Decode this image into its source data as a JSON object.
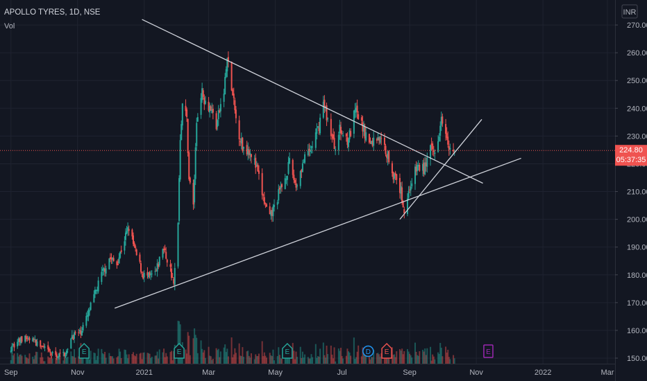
{
  "header": {
    "title": "APOLLO TYRES, 1D, NSE",
    "volume_label": "Vol",
    "currency_button": "INR"
  },
  "chart_data": {
    "type": "candlestick",
    "title": "APOLLO TYRES, 1D, NSE",
    "y_ticks": [
      150,
      160,
      170,
      180,
      190,
      200,
      210,
      220,
      230,
      240,
      250,
      260,
      270
    ],
    "y_tick_labels": [
      "150.00",
      "160.00",
      "170.00",
      "180.00",
      "190.00",
      "200.00",
      "210.00",
      "220.00",
      "230.00",
      "240.00",
      "250.00",
      "260.00",
      "270.00"
    ],
    "ylim": [
      148,
      279
    ],
    "x_ticks": [
      "2020-09-01",
      "2020-11-01",
      "2021-01-01",
      "2021-03-01",
      "2021-05-01",
      "2021-07-01",
      "2021-09-01",
      "2021-11-01",
      "2022-01-01",
      "2022-03-01"
    ],
    "x_tick_labels": [
      "Sep",
      "Nov",
      "2021",
      "Mar",
      "May",
      "Jul",
      "Sep",
      "Nov",
      "2022",
      "Mar"
    ],
    "xlim": [
      "2020-08-22",
      "2022-03-08"
    ],
    "last_price": 224.8,
    "last_price_label": "224.80",
    "countdown": "05:37:35",
    "colors": {
      "up": "#26a69a",
      "down": "#ef5350",
      "background": "#131722",
      "trendline": "#d1d4dc"
    },
    "price_path": [
      [
        "2020-10-26",
        158
      ],
      [
        "2020-11-03",
        159
      ],
      [
        "2020-11-09",
        164
      ],
      [
        "2020-11-16",
        172
      ],
      [
        "2020-11-23",
        180
      ],
      [
        "2020-11-30",
        186
      ],
      [
        "2020-12-07",
        184
      ],
      [
        "2020-12-14",
        193
      ],
      [
        "2020-12-18",
        197
      ],
      [
        "2020-12-24",
        188
      ],
      [
        "2020-12-31",
        180
      ],
      [
        "2021-01-06",
        179
      ],
      [
        "2021-01-12",
        181
      ],
      [
        "2021-01-18",
        190
      ],
      [
        "2021-01-25",
        182
      ],
      [
        "2021-01-28",
        176
      ],
      [
        "2021-02-01",
        200
      ],
      [
        "2021-02-03",
        230
      ],
      [
        "2021-02-05",
        242
      ],
      [
        "2021-02-09",
        236
      ],
      [
        "2021-02-11",
        215
      ],
      [
        "2021-02-15",
        205
      ],
      [
        "2021-02-18",
        235
      ],
      [
        "2021-02-22",
        246
      ],
      [
        "2021-02-26",
        243
      ],
      [
        "2021-03-03",
        240
      ],
      [
        "2021-03-08",
        234
      ],
      [
        "2021-03-15",
        246
      ],
      [
        "2021-03-18",
        258
      ],
      [
        "2021-03-22",
        247
      ],
      [
        "2021-03-26",
        236
      ],
      [
        "2021-04-01",
        226
      ],
      [
        "2021-04-08",
        225
      ],
      [
        "2021-04-14",
        218
      ],
      [
        "2021-04-21",
        206
      ],
      [
        "2021-04-26",
        200
      ],
      [
        "2021-05-03",
        208
      ],
      [
        "2021-05-10",
        215
      ],
      [
        "2021-05-14",
        220
      ],
      [
        "2021-05-20",
        212
      ],
      [
        "2021-05-26",
        220
      ],
      [
        "2021-06-02",
        225
      ],
      [
        "2021-06-09",
        232
      ],
      [
        "2021-06-14",
        242
      ],
      [
        "2021-06-18",
        236
      ],
      [
        "2021-06-24",
        226
      ],
      [
        "2021-06-29",
        232
      ],
      [
        "2021-07-06",
        229
      ],
      [
        "2021-07-09",
        231
      ],
      [
        "2021-07-13",
        239
      ],
      [
        "2021-07-20",
        233
      ],
      [
        "2021-07-27",
        227
      ],
      [
        "2021-08-03",
        230
      ],
      [
        "2021-08-09",
        226
      ],
      [
        "2021-08-13",
        222
      ],
      [
        "2021-08-18",
        215
      ],
      [
        "2021-08-24",
        210
      ],
      [
        "2021-08-27",
        203
      ],
      [
        "2021-09-02",
        213
      ],
      [
        "2021-09-08",
        219
      ],
      [
        "2021-09-14",
        218
      ],
      [
        "2021-09-20",
        225
      ],
      [
        "2021-09-24",
        224
      ],
      [
        "2021-09-28",
        232
      ],
      [
        "2021-09-30",
        238
      ],
      [
        "2021-10-05",
        231
      ],
      [
        "2021-10-08",
        225
      ],
      [
        "2021-10-12",
        224.8
      ]
    ],
    "trendlines": [
      {
        "from": [
          "2020-12-05",
          168
        ],
        "to": [
          "2021-12-12",
          222
        ]
      },
      {
        "from": [
          "2020-12-30",
          272
        ],
        "to": [
          "2021-11-07",
          213
        ]
      },
      {
        "from": [
          "2021-08-23",
          200
        ],
        "to": [
          "2021-11-06",
          236
        ]
      }
    ],
    "event_markers": [
      {
        "label": "E",
        "date": "2020-11-07",
        "kind": "earnings"
      },
      {
        "label": "E",
        "date": "2021-02-02",
        "kind": "earnings"
      },
      {
        "label": "E",
        "date": "2021-05-12",
        "kind": "earnings"
      },
      {
        "label": "D",
        "date": "2021-07-25",
        "kind": "dividend"
      },
      {
        "label": "E",
        "date": "2021-08-11",
        "kind": "earnings-negative"
      },
      {
        "label": "E",
        "date": "2021-11-12",
        "kind": "earnings-upcoming"
      }
    ]
  }
}
